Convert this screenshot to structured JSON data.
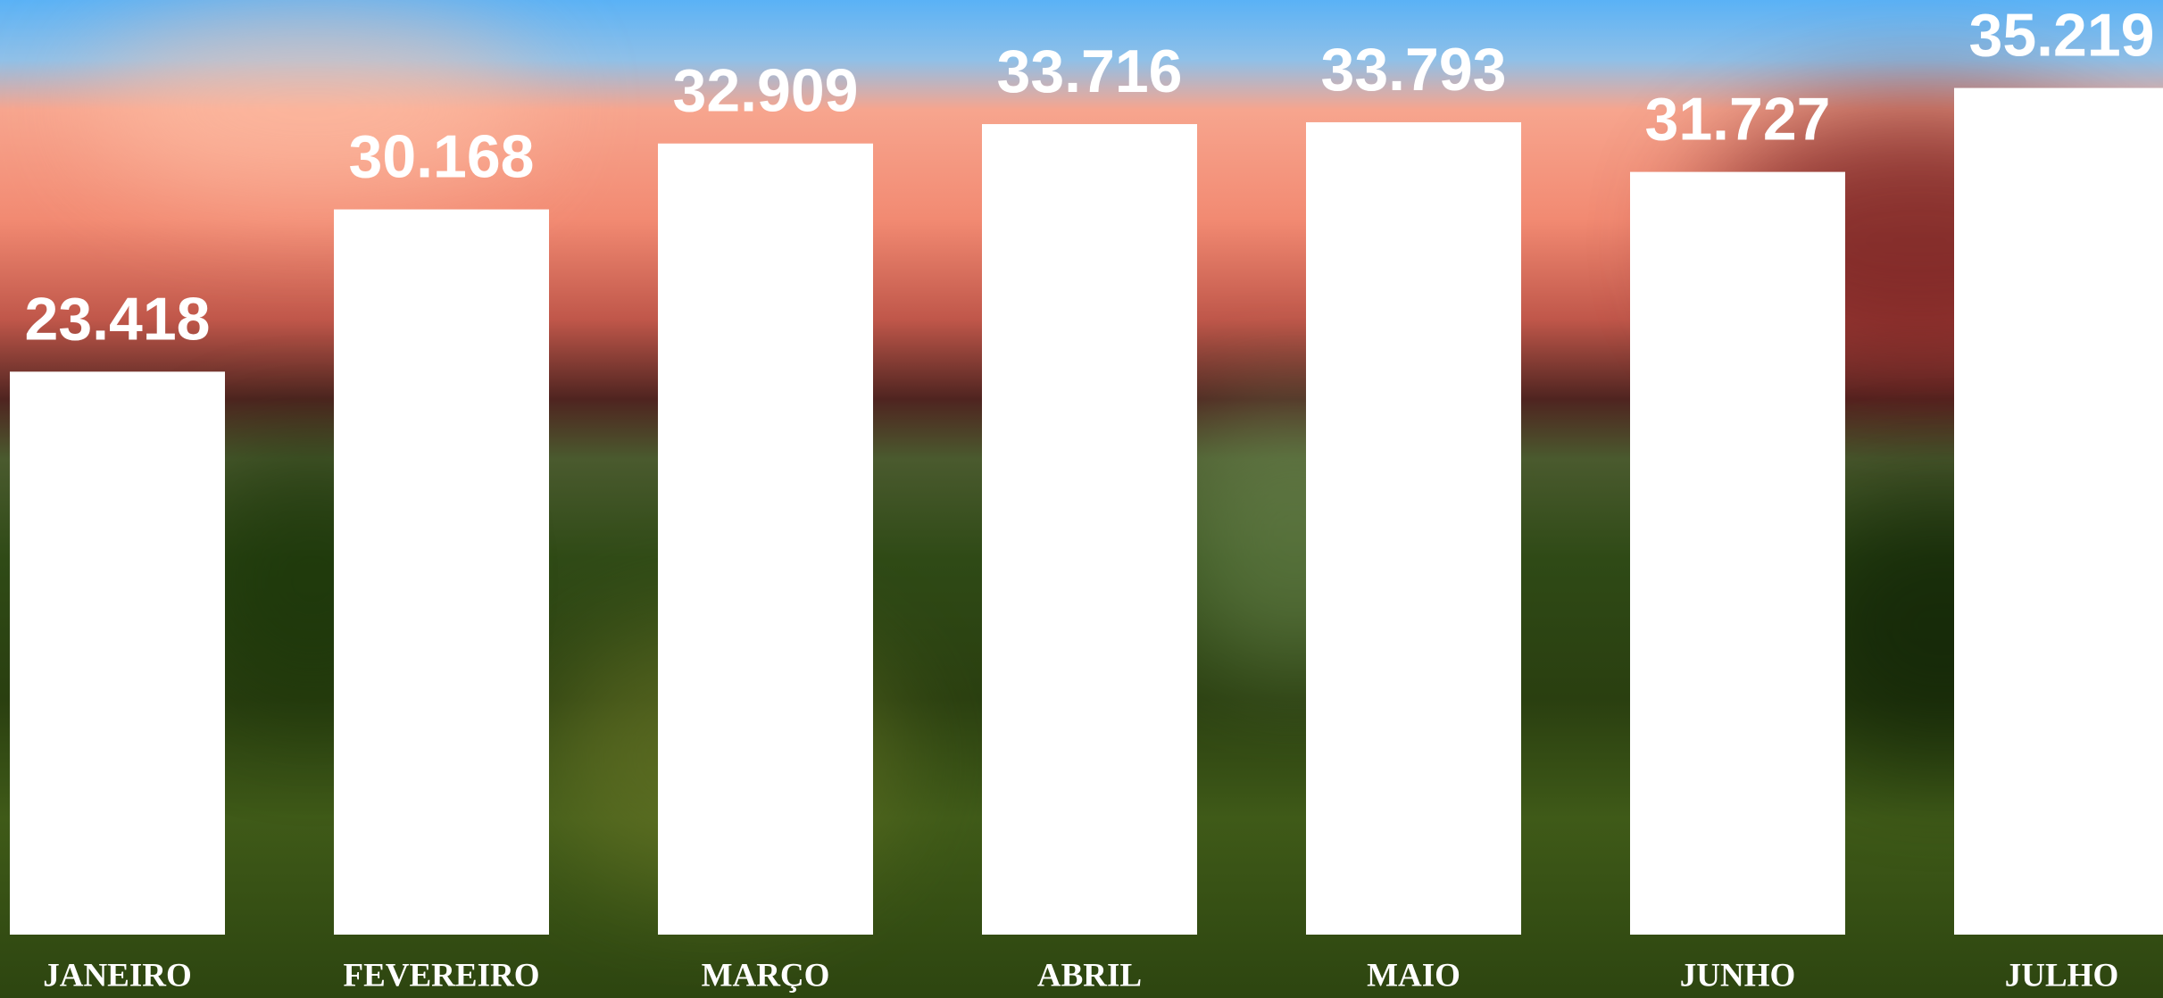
{
  "chart_data": {
    "type": "bar",
    "categories": [
      "JANEIRO",
      "FEVEREIRO",
      "MARÇO",
      "ABRIL",
      "MAIO",
      "JUNHO",
      "JULHO"
    ],
    "values": [
      23418,
      30168,
      32909,
      33716,
      33793,
      31727,
      35219
    ],
    "value_labels": [
      "23.418",
      "30.168",
      "32.909",
      "33.716",
      "33.793",
      "31.727",
      "35.219"
    ],
    "color": "#ffffff"
  }
}
